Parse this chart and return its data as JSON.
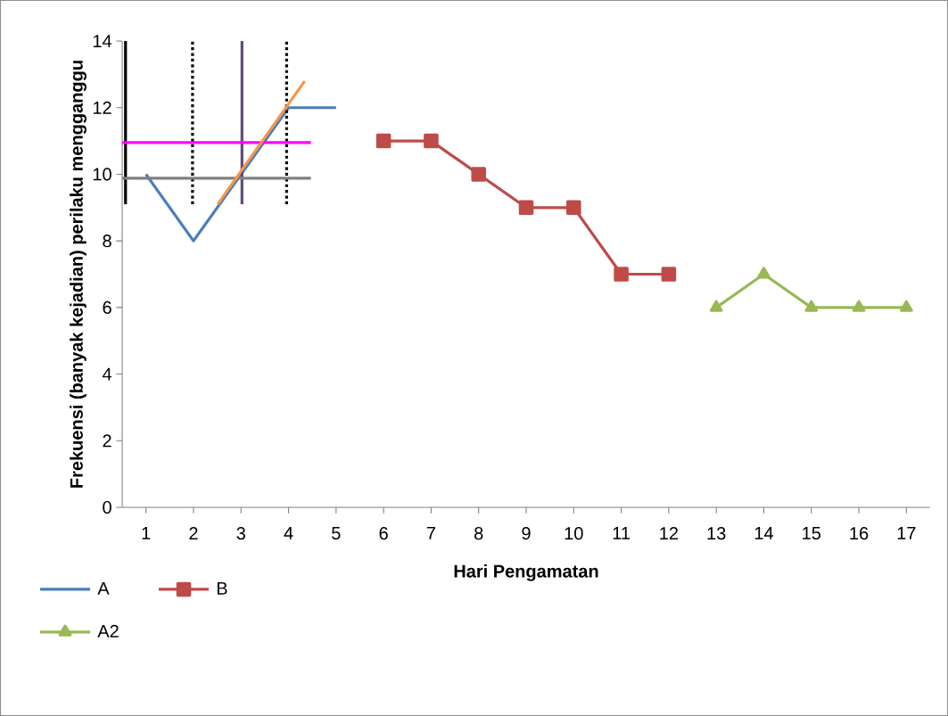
{
  "chart_data": {
    "type": "line",
    "xlabel": "Hari Pengamatan",
    "ylabel": "Frekuensi (banyak kejadian) perilaku mengganggu",
    "xlim": [
      0.5,
      17.5
    ],
    "xticks": [
      1,
      2,
      3,
      4,
      5,
      6,
      7,
      8,
      9,
      10,
      11,
      12,
      13,
      14,
      15,
      16,
      17
    ],
    "ylim": [
      0,
      14
    ],
    "yticks": [
      0,
      2,
      4,
      6,
      8,
      10,
      12,
      14
    ],
    "grid": false,
    "legend": "bottom left",
    "line_style": "solid",
    "series": [
      {
        "name": "A",
        "color": "#4a7ebb",
        "marker": "none",
        "x": [
          1,
          2,
          3,
          4,
          5
        ],
        "values": [
          10,
          8,
          10,
          12,
          12
        ]
      },
      {
        "name": "B",
        "color": "#be4b48",
        "marker": "square",
        "x": [
          6,
          7,
          8,
          9,
          10,
          11,
          12
        ],
        "values": [
          11,
          11,
          10,
          9,
          9,
          7,
          7
        ]
      },
      {
        "name": "A2",
        "color": "#98b954",
        "marker": "triangle",
        "x": [
          13,
          14,
          15,
          16,
          17
        ],
        "values": [
          6,
          7,
          6,
          6,
          6
        ]
      },
      {
        "color": "#000000",
        "marker": "none",
        "x": [
          0.57,
          0.57
        ],
        "values": [
          9.1,
          14
        ]
      },
      {
        "color": "#000000",
        "marker": "none",
        "line_style": "dotted",
        "x": [
          1.98,
          1.98
        ],
        "values": [
          9.1,
          14
        ]
      },
      {
        "color": "#604a7b",
        "marker": "none",
        "x": [
          3.02,
          3.02
        ],
        "values": [
          9.1,
          14
        ]
      },
      {
        "color": "#000000",
        "marker": "none",
        "line_style": "dotted",
        "x": [
          3.96,
          3.96
        ],
        "values": [
          9.1,
          14
        ]
      },
      {
        "color": "#ff00ff",
        "marker": "none",
        "x": [
          0.5,
          4.47
        ],
        "values": [
          10.95,
          10.95
        ]
      },
      {
        "color": "#808080",
        "marker": "none",
        "x": [
          0.5,
          4.47
        ],
        "values": [
          9.88,
          9.88
        ]
      },
      {
        "color": "#f79646",
        "marker": "none",
        "x": [
          2.51,
          4.34
        ],
        "values": [
          9.1,
          12.8
        ]
      }
    ]
  }
}
